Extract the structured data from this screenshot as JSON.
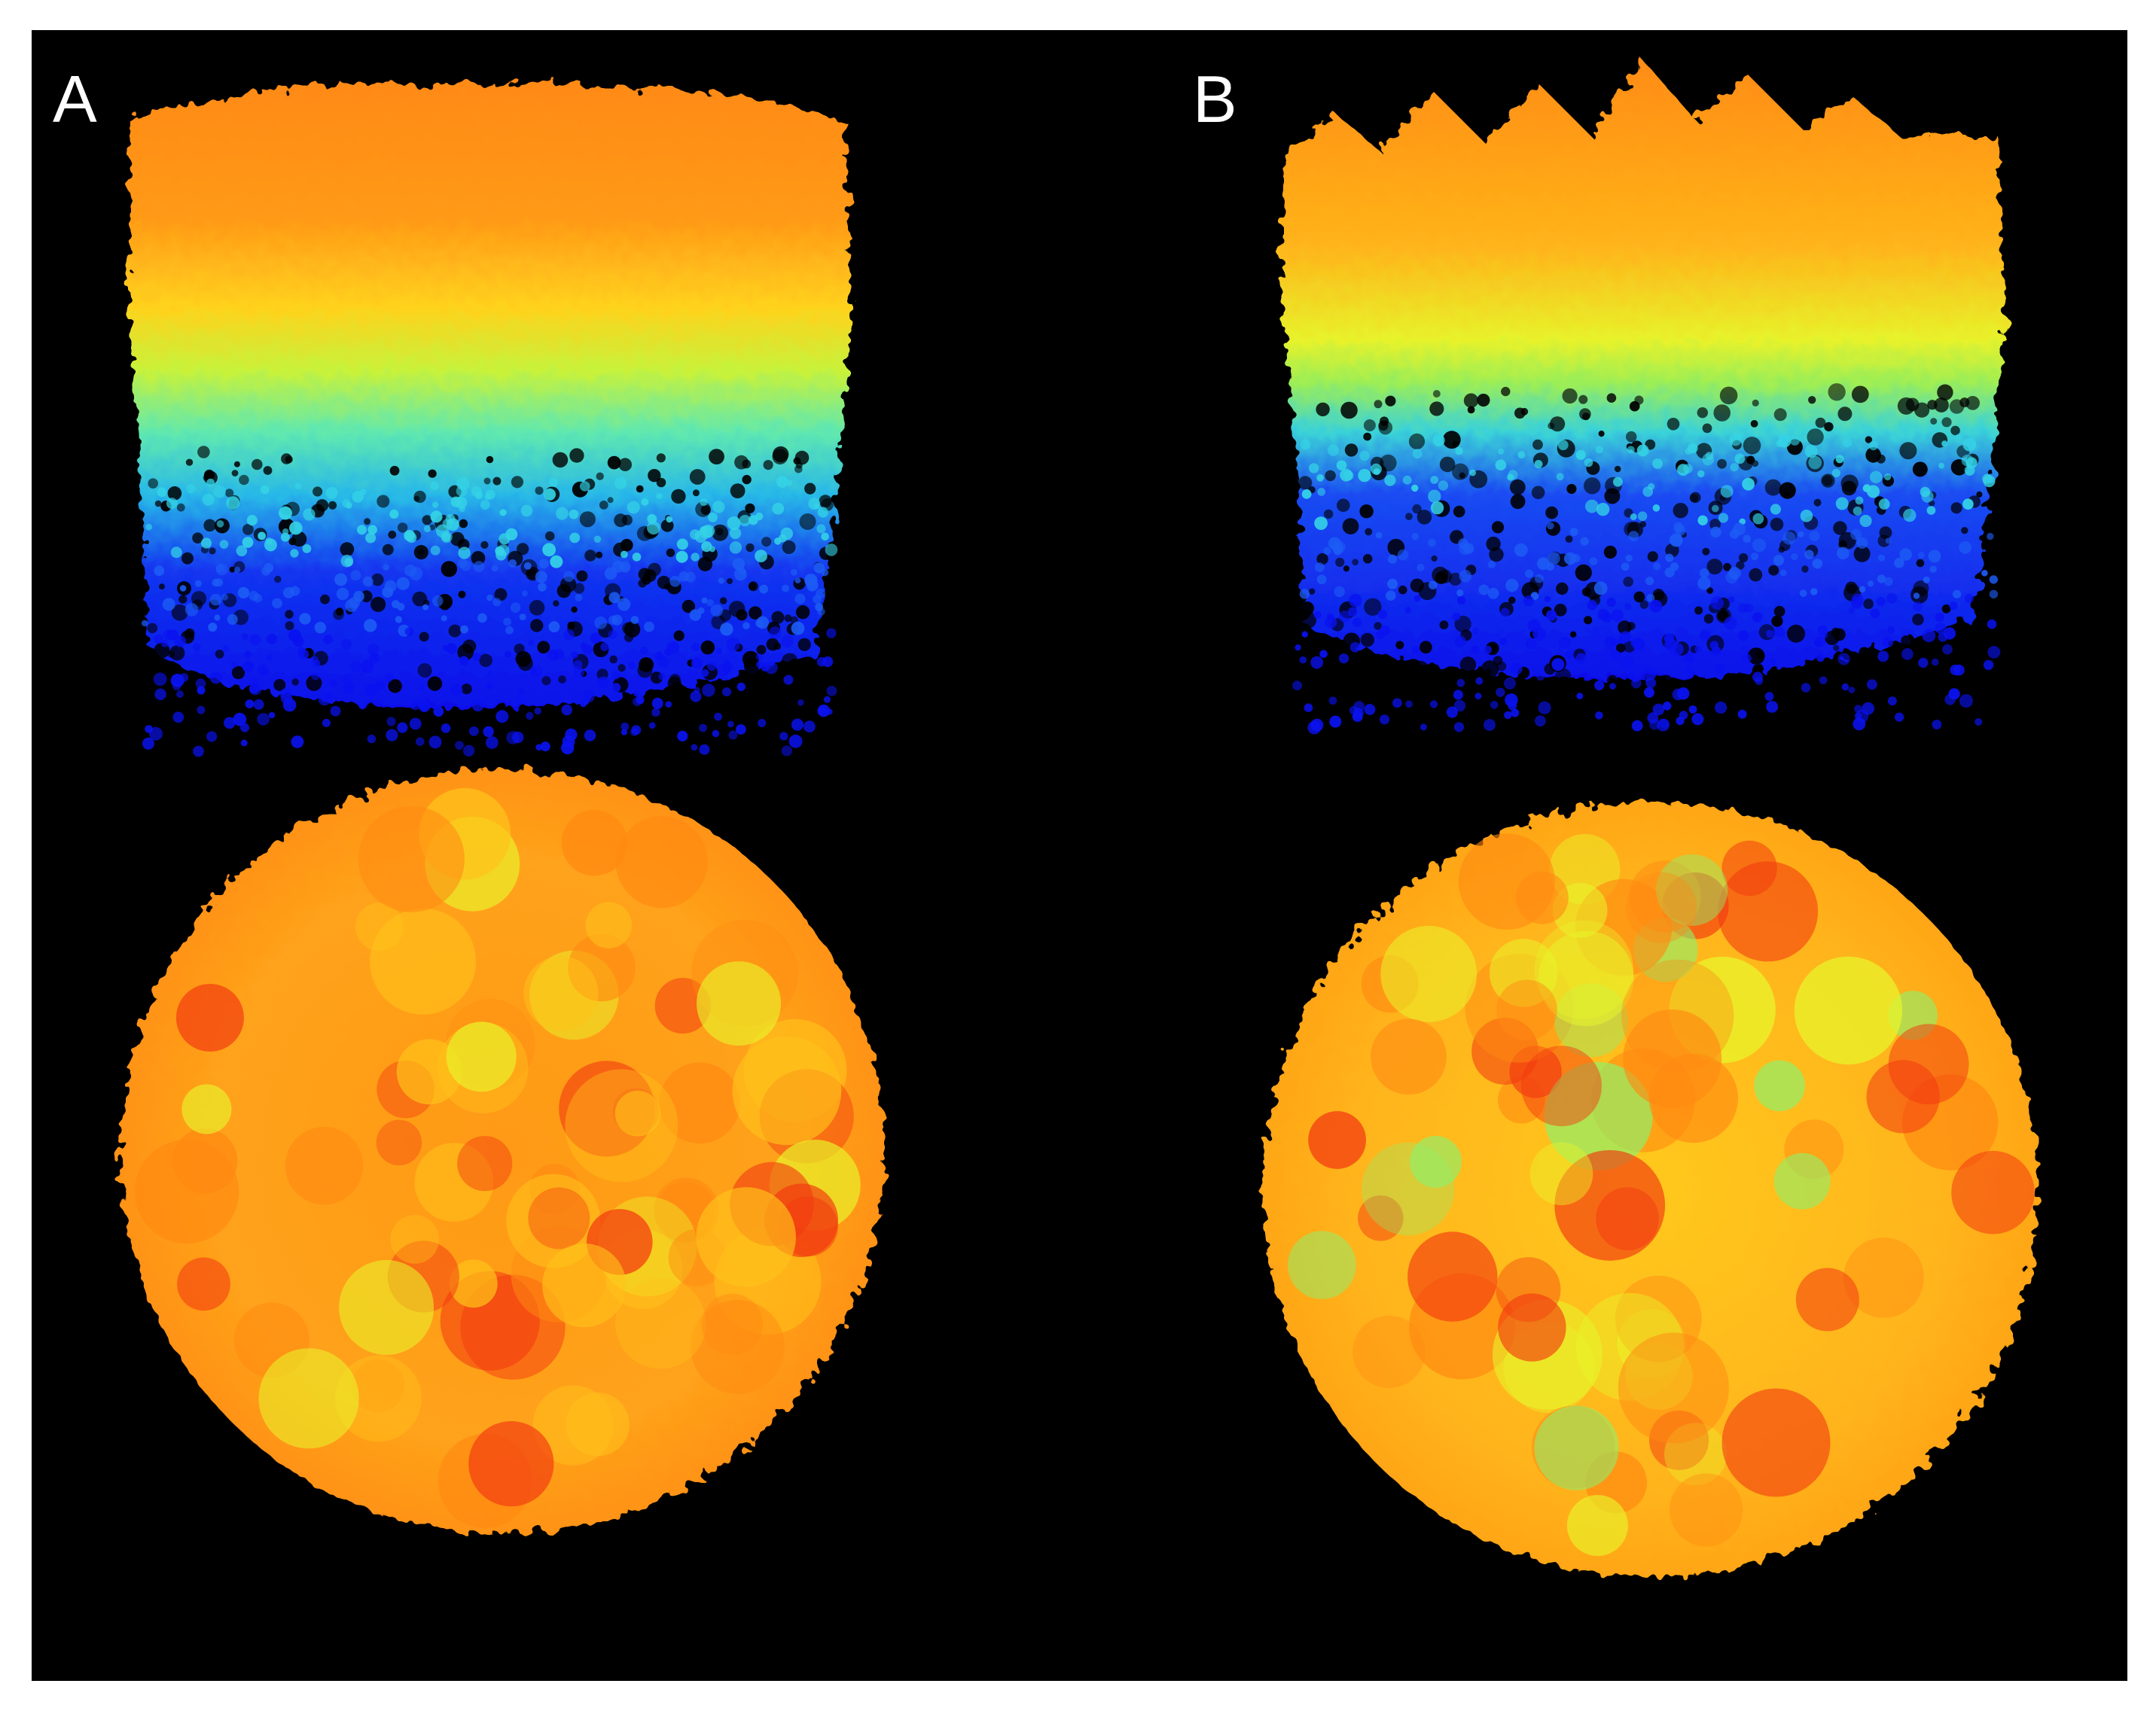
{
  "panels": [
    {
      "label": "A",
      "profile_style": "dense-even-canopy",
      "top_view": "circular-plot"
    },
    {
      "label": "B",
      "profile_style": "peaked-crowns",
      "top_view": "circular-plot"
    }
  ],
  "colormap": {
    "type": "jet-height",
    "stops": [
      "#0a12f0",
      "#1d5cf5",
      "#34d3e6",
      "#8ef06a",
      "#e8f52a",
      "#ffc21a",
      "#ff8a12",
      "#f23a10"
    ],
    "background": "#000000"
  }
}
